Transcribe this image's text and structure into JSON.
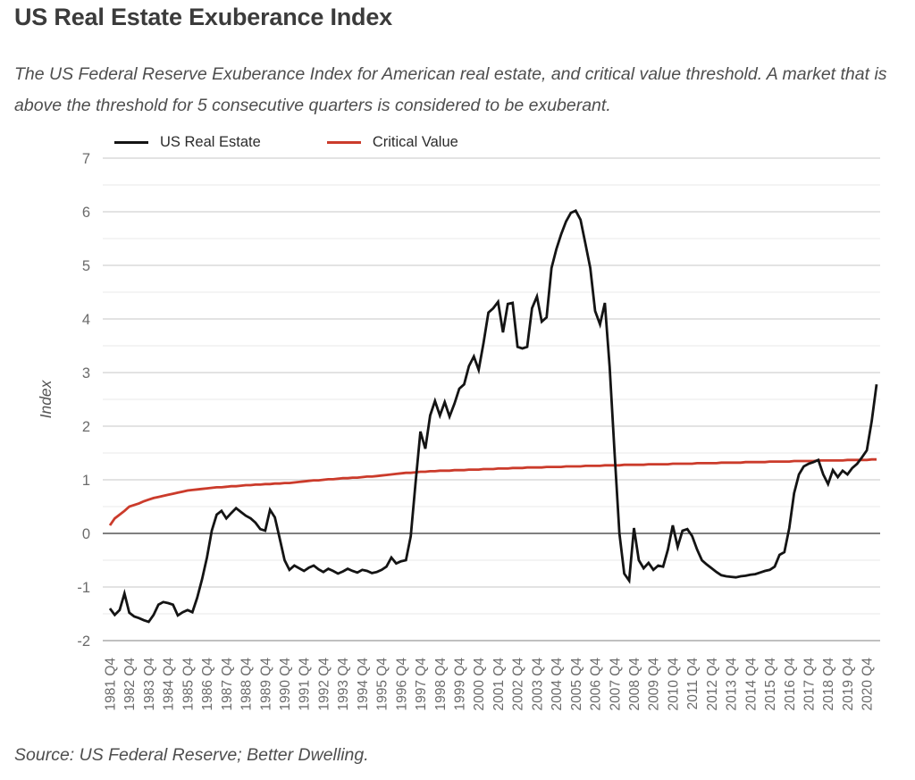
{
  "title": "US Real Estate Exuberance Index",
  "subtitle": "The US Federal Reserve Exuberance Index for American real estate, and critical value threshold. A market that is above the threshold for 5 consecutive quarters is considered to be exuberant.",
  "source": "Source: US Federal Reserve; Better Dwelling.",
  "legend": {
    "items": [
      {
        "label": "US Real Estate",
        "color": "#141414"
      },
      {
        "label": "Critical Value",
        "color": "#cb3b2b"
      }
    ]
  },
  "colors": {
    "us_real_estate": "#141414",
    "critical_value": "#cb3b2b",
    "grid_major": "#d2d2d2",
    "grid_minor": "#e9e9e9",
    "zero_line": "#565656",
    "baseline": "#ababab",
    "tick_text": "#6b6b6b",
    "axis_label": "#555555"
  },
  "chart_data": {
    "type": "line",
    "title": "US Real Estate Exuberance Index",
    "xlabel": "",
    "ylabel": "Index",
    "ylim": [
      -2,
      7
    ],
    "y_ticks": [
      -2,
      -1,
      0,
      1,
      2,
      3,
      4,
      5,
      6,
      7
    ],
    "grid": "horizontal lines every 0.5, zero line emphasized",
    "legend_position": "top-left",
    "x_frequency": "quarterly",
    "x_tick_every": 4,
    "x_tick_labels": [
      "1981 Q4",
      "1982 Q4",
      "1983 Q4",
      "1984 Q4",
      "1985 Q4",
      "1986 Q4",
      "1987 Q4",
      "1988 Q4",
      "1989 Q4",
      "1990 Q4",
      "1991 Q4",
      "1992 Q4",
      "1993 Q4",
      "1994 Q4",
      "1995 Q4",
      "1996 Q4",
      "1997 Q4",
      "1998 Q4",
      "1999 Q4",
      "2000 Q4",
      "2001 Q4",
      "2002 Q4",
      "2003 Q4",
      "2004 Q4",
      "2005 Q4",
      "2006 Q4",
      "2007 Q4",
      "2008 Q4",
      "2009 Q4",
      "2010 Q4",
      "2011 Q4",
      "2012 Q4",
      "2013 Q4",
      "2014 Q4",
      "2015 Q4",
      "2016 Q4",
      "2017 Q4",
      "2018 Q4",
      "2019 Q4",
      "2020 Q4"
    ],
    "series": [
      {
        "name": "US Real Estate",
        "color": "#141414",
        "values": [
          -1.4,
          -1.52,
          -1.43,
          -1.12,
          -1.48,
          -1.55,
          -1.58,
          -1.62,
          -1.65,
          -1.52,
          -1.33,
          -1.28,
          -1.3,
          -1.33,
          -1.53,
          -1.47,
          -1.43,
          -1.47,
          -1.2,
          -0.85,
          -0.45,
          0.05,
          0.35,
          0.42,
          0.28,
          0.38,
          0.47,
          0.4,
          0.33,
          0.28,
          0.2,
          0.08,
          0.05,
          0.44,
          0.3,
          -0.1,
          -0.5,
          -0.68,
          -0.6,
          -0.65,
          -0.7,
          -0.64,
          -0.6,
          -0.67,
          -0.72,
          -0.66,
          -0.7,
          -0.75,
          -0.71,
          -0.66,
          -0.7,
          -0.73,
          -0.68,
          -0.7,
          -0.74,
          -0.72,
          -0.68,
          -0.62,
          -0.45,
          -0.56,
          -0.52,
          -0.5,
          -0.05,
          0.95,
          1.9,
          1.58,
          2.2,
          2.47,
          2.2,
          2.45,
          2.18,
          2.42,
          2.7,
          2.78,
          3.12,
          3.3,
          3.05,
          3.55,
          4.12,
          4.2,
          4.32,
          3.75,
          4.28,
          4.3,
          3.48,
          3.45,
          3.48,
          4.2,
          4.42,
          3.95,
          4.03,
          4.95,
          5.3,
          5.58,
          5.82,
          5.98,
          6.02,
          5.85,
          5.4,
          4.95,
          4.15,
          3.9,
          4.3,
          3.1,
          1.5,
          0.0,
          -0.75,
          -0.88,
          0.1,
          -0.5,
          -0.65,
          -0.55,
          -0.68,
          -0.6,
          -0.62,
          -0.3,
          0.15,
          -0.25,
          0.05,
          0.08,
          -0.05,
          -0.3,
          -0.5,
          -0.58,
          -0.65,
          -0.72,
          -0.78,
          -0.8,
          -0.81,
          -0.82,
          -0.8,
          -0.79,
          -0.77,
          -0.76,
          -0.73,
          -0.7,
          -0.68,
          -0.62,
          -0.4,
          -0.35,
          0.1,
          0.75,
          1.1,
          1.25,
          1.3,
          1.33,
          1.37,
          1.1,
          0.92,
          1.18,
          1.05,
          1.17,
          1.1,
          1.22,
          1.3,
          1.42,
          1.55,
          2.1,
          2.78
        ]
      },
      {
        "name": "Critical Value",
        "color": "#cb3b2b",
        "values": [
          0.15,
          0.28,
          0.35,
          0.42,
          0.5,
          0.53,
          0.56,
          0.6,
          0.63,
          0.66,
          0.68,
          0.7,
          0.72,
          0.74,
          0.76,
          0.78,
          0.8,
          0.81,
          0.82,
          0.83,
          0.84,
          0.85,
          0.86,
          0.86,
          0.87,
          0.88,
          0.88,
          0.89,
          0.9,
          0.9,
          0.91,
          0.91,
          0.92,
          0.92,
          0.93,
          0.93,
          0.94,
          0.94,
          0.95,
          0.96,
          0.97,
          0.98,
          0.99,
          0.99,
          1.0,
          1.01,
          1.01,
          1.02,
          1.03,
          1.03,
          1.04,
          1.04,
          1.05,
          1.06,
          1.06,
          1.07,
          1.08,
          1.09,
          1.1,
          1.11,
          1.12,
          1.13,
          1.13,
          1.14,
          1.15,
          1.15,
          1.16,
          1.16,
          1.17,
          1.17,
          1.17,
          1.18,
          1.18,
          1.18,
          1.19,
          1.19,
          1.19,
          1.2,
          1.2,
          1.2,
          1.21,
          1.21,
          1.21,
          1.22,
          1.22,
          1.22,
          1.23,
          1.23,
          1.23,
          1.23,
          1.24,
          1.24,
          1.24,
          1.24,
          1.25,
          1.25,
          1.25,
          1.25,
          1.26,
          1.26,
          1.26,
          1.26,
          1.27,
          1.27,
          1.27,
          1.27,
          1.28,
          1.28,
          1.28,
          1.28,
          1.28,
          1.29,
          1.29,
          1.29,
          1.29,
          1.29,
          1.3,
          1.3,
          1.3,
          1.3,
          1.3,
          1.31,
          1.31,
          1.31,
          1.31,
          1.31,
          1.32,
          1.32,
          1.32,
          1.32,
          1.32,
          1.33,
          1.33,
          1.33,
          1.33,
          1.33,
          1.34,
          1.34,
          1.34,
          1.34,
          1.34,
          1.35,
          1.35,
          1.35,
          1.35,
          1.35,
          1.36,
          1.36,
          1.36,
          1.36,
          1.36,
          1.36,
          1.37,
          1.37,
          1.37,
          1.37,
          1.37,
          1.38,
          1.38
        ]
      }
    ]
  }
}
